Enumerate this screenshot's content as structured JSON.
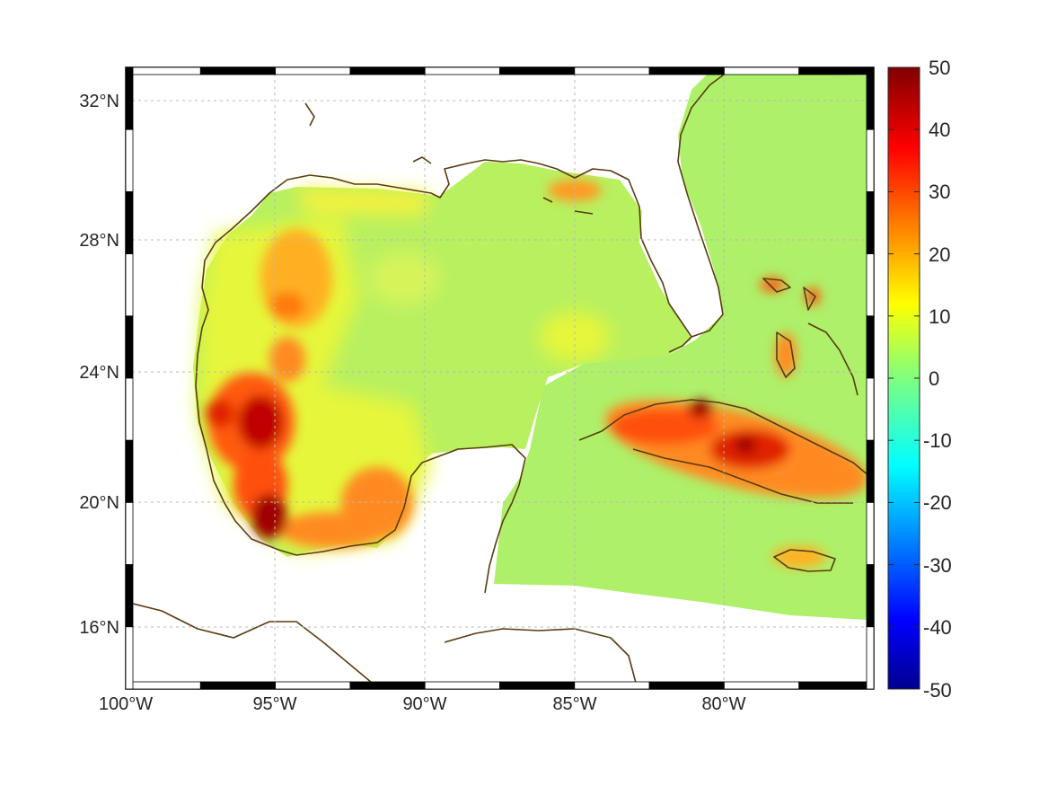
{
  "map": {
    "lon_labels": [
      "100°W",
      "95°W",
      "90°W",
      "85°W",
      "80°W"
    ],
    "lat_labels": [
      "32°N",
      "28°N",
      "24°N",
      "20°N",
      "16°N"
    ],
    "colorbar": {
      "labels": [
        "50",
        "40",
        "30",
        "20",
        "10",
        "0",
        "-10",
        "-20",
        "-30",
        "-40",
        "-50"
      ],
      "range": [
        -50,
        50
      ],
      "colormap": "jet"
    },
    "colors": {
      "coastline": "#5a3b10",
      "dominant_field": "#a8f060",
      "hot": "#7a0000"
    }
  }
}
